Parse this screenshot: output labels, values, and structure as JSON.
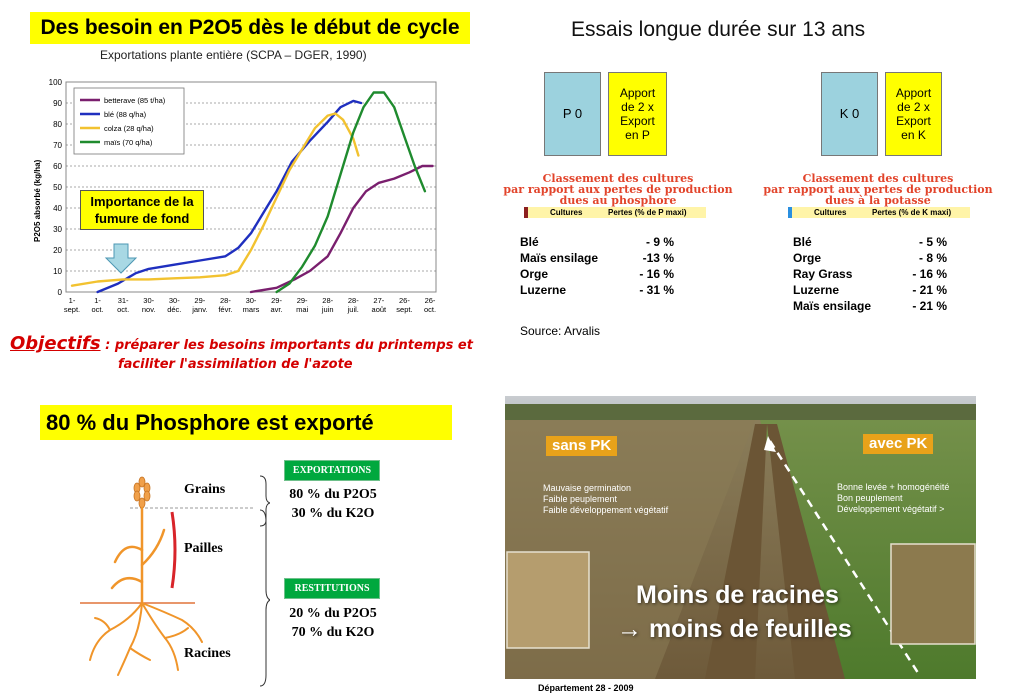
{
  "top_left": {
    "title": "Des besoin en P2O5 dès le début de cycle",
    "subtitle": "Exportations plante entière (SCPA – DGER, 1990)",
    "callout": "Importance de la fumure de fond",
    "objectifs_label": "Objectifs",
    "objectifs_text_1": " : préparer les besoins importants du printemps et",
    "objectifs_text_2": "faciliter l'assimilation de l'azote"
  },
  "chart_data": {
    "type": "line",
    "ylabel": "P2O5 absorbé (kg/ha)",
    "ylim": [
      0,
      100
    ],
    "yticks": [
      0,
      10,
      20,
      30,
      40,
      50,
      60,
      70,
      80,
      90,
      100
    ],
    "x_ticks": [
      {
        "label": "1-",
        "label2": "sept."
      },
      {
        "label": "1-",
        "label2": "oct."
      },
      {
        "label": "31-",
        "label2": "oct."
      },
      {
        "label": "30-",
        "label2": "nov."
      },
      {
        "label": "30-",
        "label2": "déc."
      },
      {
        "label": "29-",
        "label2": "janv."
      },
      {
        "label": "28-",
        "label2": "févr."
      },
      {
        "label": "30-",
        "label2": "mars"
      },
      {
        "label": "29-",
        "label2": "avr."
      },
      {
        "label": "29-",
        "label2": "mai"
      },
      {
        "label": "28-",
        "label2": "juin"
      },
      {
        "label": "28-",
        "label2": "juil."
      },
      {
        "label": "27-",
        "label2": "août"
      },
      {
        "label": "26-",
        "label2": "sept."
      },
      {
        "label": "26-",
        "label2": "oct."
      }
    ],
    "legend_position": "top-left",
    "series": [
      {
        "name": "betterave (85 t/ha)",
        "color": "#7a1f6e",
        "points": [
          [
            7,
            0
          ],
          [
            8,
            2
          ],
          [
            8.7,
            6
          ],
          [
            9.3,
            10
          ],
          [
            10,
            17
          ],
          [
            10.5,
            28
          ],
          [
            11,
            40
          ],
          [
            11.5,
            48
          ],
          [
            12,
            52
          ],
          [
            12.6,
            54
          ],
          [
            13.2,
            57
          ],
          [
            13.7,
            60
          ],
          [
            14.1,
            60
          ]
        ]
      },
      {
        "name": "blé (88 q/ha)",
        "color": "#1f2fbf",
        "points": [
          [
            1,
            0
          ],
          [
            1.8,
            4
          ],
          [
            2.5,
            9
          ],
          [
            3,
            11
          ],
          [
            4,
            13
          ],
          [
            5,
            15
          ],
          [
            6,
            17
          ],
          [
            6.5,
            21
          ],
          [
            7,
            28
          ],
          [
            7.6,
            40
          ],
          [
            8,
            48
          ],
          [
            8.6,
            62
          ],
          [
            9.3,
            72
          ],
          [
            10,
            81
          ],
          [
            10.5,
            88
          ],
          [
            11,
            91
          ],
          [
            11.3,
            90
          ]
        ]
      },
      {
        "name": "colza (28 q/ha)",
        "color": "#f2c230",
        "points": [
          [
            0,
            3
          ],
          [
            1,
            5
          ],
          [
            2,
            6
          ],
          [
            3,
            6
          ],
          [
            4,
            6.5
          ],
          [
            5,
            7
          ],
          [
            6,
            8
          ],
          [
            6.5,
            10
          ],
          [
            7,
            20
          ],
          [
            7.5,
            32
          ],
          [
            8,
            45
          ],
          [
            8.5,
            58
          ],
          [
            9,
            68
          ],
          [
            9.5,
            78
          ],
          [
            10,
            84
          ],
          [
            10.3,
            85
          ],
          [
            10.6,
            82
          ],
          [
            11,
            73
          ],
          [
            11.2,
            65
          ]
        ]
      },
      {
        "name": "maïs (70 q/ha)",
        "color": "#1f8b2e",
        "points": [
          [
            8,
            0
          ],
          [
            8.5,
            4
          ],
          [
            9,
            12
          ],
          [
            9.5,
            22
          ],
          [
            10,
            36
          ],
          [
            10.5,
            56
          ],
          [
            11,
            76
          ],
          [
            11.4,
            88
          ],
          [
            11.8,
            95
          ],
          [
            12.2,
            95
          ],
          [
            12.6,
            88
          ],
          [
            13,
            74
          ],
          [
            13.4,
            60
          ],
          [
            13.8,
            48
          ]
        ]
      }
    ]
  },
  "top_right": {
    "title": "Essais longue durée sur 13 ans",
    "box_p0": "P 0",
    "box_p_apport": [
      "Apport",
      "de 2 x",
      "Export",
      "en P"
    ],
    "box_k0": "K 0",
    "box_k_apport": [
      "Apport",
      "de 2 x",
      "Export",
      "en K"
    ],
    "classement_p": [
      "Classement des cultures",
      "par rapport aux pertes de production",
      "dues au phosphore"
    ],
    "classement_k": [
      "Classement des cultures",
      "par rapport aux pertes de production",
      "dues à la potasse"
    ],
    "col_cultures": "Cultures",
    "col_pertes_p": "Pertes (% de P maxi)",
    "col_pertes_k": "Pertes (% de K maxi)",
    "phosphore_rows": [
      {
        "culture": "Blé",
        "perte": "- 9 %"
      },
      {
        "culture": "Maïs ensilage",
        "perte": "-13 %"
      },
      {
        "culture": "Orge",
        "perte": "- 16 %"
      },
      {
        "culture": "Luzerne",
        "perte": "- 31 %"
      }
    ],
    "potasse_rows": [
      {
        "culture": "Blé",
        "perte": "- 5 %"
      },
      {
        "culture": "Orge",
        "perte": "- 8 %"
      },
      {
        "culture": "Ray Grass",
        "perte": "- 16 %"
      },
      {
        "culture": "Luzerne",
        "perte": "- 21 %"
      },
      {
        "culture": "Maïs ensilage",
        "perte": "- 21 %"
      }
    ],
    "source": "Source: Arvalis"
  },
  "bottom_left": {
    "title": "80 % du Phosphore est exporté",
    "grains": "Grains",
    "pailles": "Pailles",
    "racines": "Racines",
    "exportations": "EXPORTATIONS",
    "export_p": "80 % du P2O5",
    "export_k": "30 % du K2O",
    "restitutions": "RESTITUTIONS",
    "restit_p": "20 % du P2O5",
    "restit_k": "70 % du K2O"
  },
  "bottom_right": {
    "label_sans": "sans PK",
    "label_avec": "avec PK",
    "notes_sans": [
      "Mauvaise germination",
      "Faible peuplement",
      "Faible développement végétatif"
    ],
    "notes_avec": [
      "Bonne levée + homogénéité",
      "Bon peuplement",
      "Développement végétatif >"
    ],
    "big_line1": "Moins de racines",
    "big_line2": "→ moins de feuilles",
    "footer": "Département 28 - 2009"
  }
}
